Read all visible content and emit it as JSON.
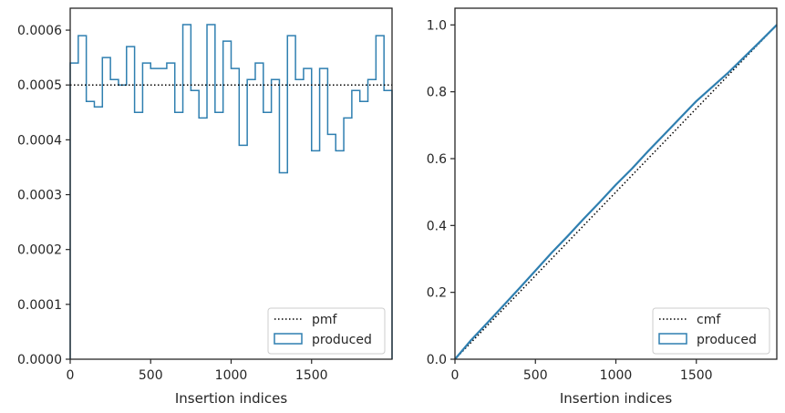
{
  "chart_data": [
    {
      "type": "step",
      "xlabel": "Insertion indices",
      "ylabel": "",
      "xlim": [
        0,
        2000
      ],
      "ylim": [
        0,
        0.00064
      ],
      "xticks": [
        0,
        500,
        1000,
        1500
      ],
      "yticks": [
        0,
        0.0001,
        0.0002,
        0.0003,
        0.0004,
        0.0005,
        0.0006
      ],
      "ytick_labels": [
        "0.0000",
        "0.0001",
        "0.0002",
        "0.0003",
        "0.0004",
        "0.0005",
        "0.0006"
      ],
      "bin_width": 50,
      "bin_edges_start": 0,
      "reference_line": {
        "name": "pmf",
        "value": 0.0005,
        "style": "dotted",
        "color": "#000000"
      },
      "series": [
        {
          "name": "produced",
          "color": "#2f7fb0",
          "values": [
            0.00054,
            0.00059,
            0.00047,
            0.00046,
            0.00055,
            0.00051,
            0.0005,
            0.00057,
            0.00045,
            0.00054,
            0.00053,
            0.00053,
            0.00054,
            0.00045,
            0.00061,
            0.00049,
            0.00044,
            0.00061,
            0.00045,
            0.00058,
            0.00053,
            0.00039,
            0.00051,
            0.00054,
            0.00045,
            0.00051,
            0.00034,
            0.00059,
            0.00051,
            0.00053,
            0.00038,
            0.00053,
            0.00041,
            0.00038,
            0.00044,
            0.00049,
            0.00047,
            0.00051,
            0.00059,
            0.00049
          ]
        }
      ],
      "legend": {
        "position": "bottom-right",
        "entries": [
          "pmf",
          "produced"
        ]
      }
    },
    {
      "type": "line",
      "xlabel": "Insertion indices",
      "ylabel": "",
      "xlim": [
        0,
        2000
      ],
      "ylim": [
        0,
        1.05
      ],
      "xticks": [
        0,
        500,
        1000,
        1500
      ],
      "yticks": [
        0.0,
        0.2,
        0.4,
        0.6,
        0.8,
        1.0
      ],
      "ytick_labels": [
        "0.0",
        "0.2",
        "0.4",
        "0.6",
        "0.8",
        "1.0"
      ],
      "reference_line": {
        "name": "cmf",
        "from": [
          0,
          0
        ],
        "to": [
          2000,
          1.0
        ],
        "style": "dotted",
        "color": "#000000"
      },
      "series": [
        {
          "name": "produced",
          "color": "#2f7fb0",
          "x": [
            0,
            100,
            200,
            300,
            400,
            500,
            600,
            700,
            800,
            900,
            1000,
            1100,
            1200,
            1300,
            1400,
            1500,
            1600,
            1700,
            1800,
            1900,
            2000
          ],
          "y": [
            0.0,
            0.057,
            0.108,
            0.16,
            0.212,
            0.265,
            0.318,
            0.368,
            0.42,
            0.47,
            0.522,
            0.57,
            0.622,
            0.672,
            0.722,
            0.772,
            0.815,
            0.858,
            0.905,
            0.952,
            1.0
          ]
        }
      ],
      "legend": {
        "position": "bottom-right",
        "entries": [
          "cmf",
          "produced"
        ]
      }
    }
  ]
}
